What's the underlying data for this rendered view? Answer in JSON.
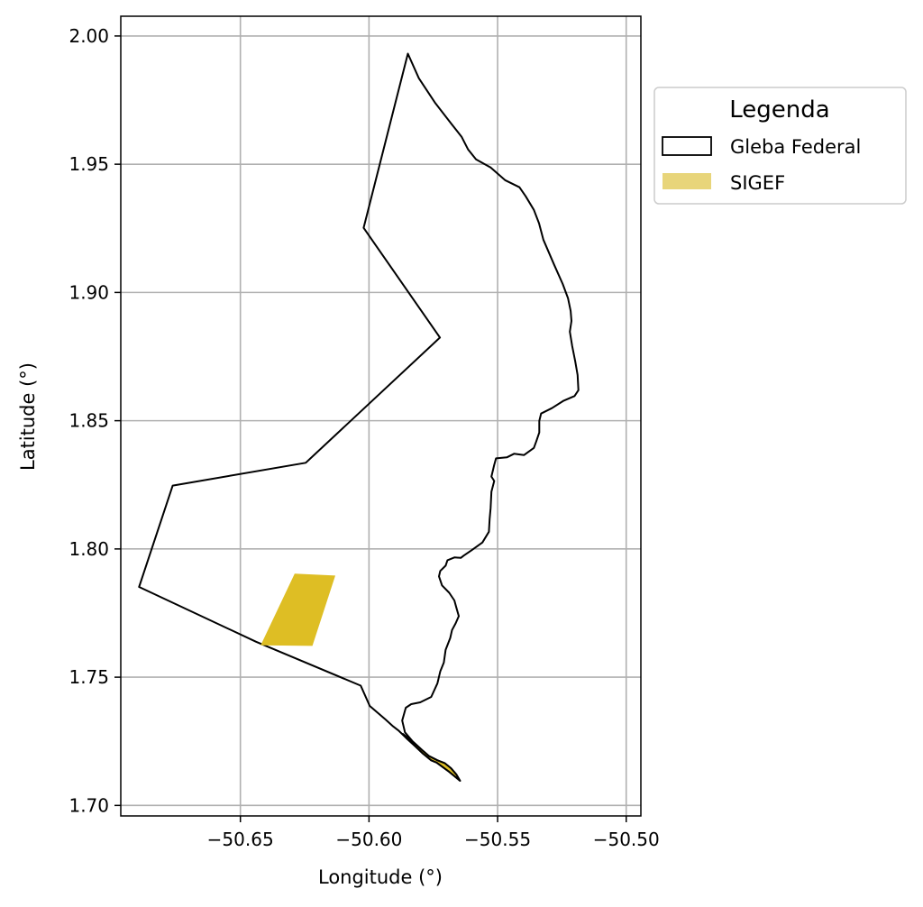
{
  "chart_data": {
    "type": "map",
    "xlabel": "Longitude (°)",
    "ylabel": "Latitude (°)",
    "xlim": [
      -50.6965,
      -50.4943
    ],
    "ylim": [
      1.6959,
      2.0077
    ],
    "xticks": [
      -50.65,
      -50.6,
      -50.55,
      -50.5
    ],
    "xtick_labels": [
      "−50.65",
      "−50.60",
      "−50.55",
      "−50.50"
    ],
    "yticks": [
      1.7,
      1.75,
      1.8,
      1.85,
      1.9,
      1.95,
      2.0
    ],
    "ytick_labels": [
      "1.70",
      "1.75",
      "1.80",
      "1.85",
      "1.90",
      "1.95",
      "2.00"
    ],
    "grid": true,
    "legend": {
      "title": "Legenda",
      "position": "outside upper right",
      "entries": [
        {
          "label": "Gleba Federal",
          "style": "outline",
          "color": "#000000"
        },
        {
          "label": "SIGEF",
          "style": "fill",
          "color": "#E8D57A"
        }
      ]
    },
    "layers": [
      {
        "name": "Gleba Federal",
        "fill": "none",
        "stroke": "#000000",
        "coordinates": [
          [
            -50.5849,
            1.9931
          ],
          [
            -50.5806,
            1.9835
          ],
          [
            -50.5744,
            1.9741
          ],
          [
            -50.5681,
            1.9659
          ],
          [
            -50.564,
            1.9607
          ],
          [
            -50.5615,
            1.9558
          ],
          [
            -50.5584,
            1.9519
          ],
          [
            -50.5527,
            1.9487
          ],
          [
            -50.5471,
            1.9438
          ],
          [
            -50.5415,
            1.941
          ],
          [
            -50.5391,
            1.9375
          ],
          [
            -50.5359,
            1.9322
          ],
          [
            -50.5339,
            1.927
          ],
          [
            -50.5322,
            1.9206
          ],
          [
            -50.528,
            1.9108
          ],
          [
            -50.5247,
            1.9033
          ],
          [
            -50.5226,
            1.8977
          ],
          [
            -50.5216,
            1.8928
          ],
          [
            -50.5213,
            1.8889
          ],
          [
            -50.5219,
            1.8847
          ],
          [
            -50.521,
            1.8791
          ],
          [
            -50.5198,
            1.8731
          ],
          [
            -50.5189,
            1.8678
          ],
          [
            -50.5186,
            1.8619
          ],
          [
            -50.5201,
            1.8596
          ],
          [
            -50.5243,
            1.8578
          ],
          [
            -50.5289,
            1.8549
          ],
          [
            -50.5331,
            1.8528
          ],
          [
            -50.5338,
            1.8499
          ],
          [
            -50.5338,
            1.8454
          ],
          [
            -50.535,
            1.8419
          ],
          [
            -50.5359,
            1.8394
          ],
          [
            -50.5397,
            1.8366
          ],
          [
            -50.5436,
            1.8371
          ],
          [
            -50.5464,
            1.8357
          ],
          [
            -50.5506,
            1.8353
          ],
          [
            -50.5513,
            1.8328
          ],
          [
            -50.5524,
            1.8282
          ],
          [
            -50.5513,
            1.8265
          ],
          [
            -50.5524,
            1.8223
          ],
          [
            -50.5527,
            1.8159
          ],
          [
            -50.5531,
            1.8116
          ],
          [
            -50.5534,
            1.8067
          ],
          [
            -50.5559,
            1.8025
          ],
          [
            -50.5601,
            1.7995
          ],
          [
            -50.5632,
            1.7974
          ],
          [
            -50.5643,
            1.7965
          ],
          [
            -50.5667,
            1.7967
          ],
          [
            -50.5695,
            1.7956
          ],
          [
            -50.5702,
            1.7935
          ],
          [
            -50.5723,
            1.7914
          ],
          [
            -50.5728,
            1.7893
          ],
          [
            -50.5716,
            1.7858
          ],
          [
            -50.5688,
            1.7829
          ],
          [
            -50.5668,
            1.7799
          ],
          [
            -50.566,
            1.777
          ],
          [
            -50.5651,
            1.7738
          ],
          [
            -50.5663,
            1.771
          ],
          [
            -50.5677,
            1.7684
          ],
          [
            -50.5684,
            1.7653
          ],
          [
            -50.5702,
            1.7607
          ],
          [
            -50.5709,
            1.7557
          ],
          [
            -50.5723,
            1.7522
          ],
          [
            -50.5734,
            1.7476
          ],
          [
            -50.5758,
            1.7423
          ],
          [
            -50.5801,
            1.7402
          ],
          [
            -50.5836,
            1.7395
          ],
          [
            -50.5857,
            1.7381
          ],
          [
            -50.5871,
            1.7331
          ],
          [
            -50.586,
            1.7285
          ],
          [
            -50.5829,
            1.7248
          ],
          [
            -50.5794,
            1.7216
          ],
          [
            -50.5766,
            1.7192
          ],
          [
            -50.5734,
            1.7176
          ],
          [
            -50.5706,
            1.7165
          ],
          [
            -50.5681,
            1.7145
          ],
          [
            -50.566,
            1.712
          ],
          [
            -50.5646,
            1.7096
          ],
          [
            -50.5688,
            1.7131
          ],
          [
            -50.5737,
            1.7167
          ],
          [
            -50.5758,
            1.7176
          ],
          [
            -50.579,
            1.7202
          ],
          [
            -50.5822,
            1.7232
          ],
          [
            -50.5853,
            1.7261
          ],
          [
            -50.5884,
            1.7291
          ],
          [
            -50.5906,
            1.7308
          ],
          [
            -50.5937,
            1.7336
          ],
          [
            -50.5997,
            1.7388
          ],
          [
            -50.6032,
            1.7467
          ],
          [
            -50.6439,
            1.7638
          ],
          [
            -50.6894,
            1.7852
          ],
          [
            -50.6763,
            1.8247
          ],
          [
            -50.6246,
            1.8336
          ],
          [
            -50.5724,
            1.8824
          ],
          [
            -50.6021,
            1.9252
          ],
          [
            -50.5849,
            1.9931
          ]
        ]
      },
      {
        "name": "SIGEF",
        "fill": "#DEBE24",
        "stroke": "none",
        "coordinates": [
          [
            -50.6289,
            1.7904
          ],
          [
            -50.6131,
            1.7896
          ],
          [
            -50.622,
            1.7622
          ],
          [
            -50.6421,
            1.7624
          ],
          [
            -50.6289,
            1.7904
          ]
        ]
      },
      {
        "name": "SIGEF",
        "fill": "#DEBE24",
        "stroke": "#000000",
        "coordinates": [
          [
            -50.5868,
            1.7279
          ],
          [
            -50.5829,
            1.7248
          ],
          [
            -50.5794,
            1.7216
          ],
          [
            -50.5766,
            1.7192
          ],
          [
            -50.5734,
            1.7176
          ],
          [
            -50.5706,
            1.7165
          ],
          [
            -50.5681,
            1.7145
          ],
          [
            -50.566,
            1.712
          ],
          [
            -50.5646,
            1.7096
          ],
          [
            -50.5688,
            1.7131
          ],
          [
            -50.5737,
            1.7167
          ],
          [
            -50.5758,
            1.7176
          ],
          [
            -50.579,
            1.7202
          ],
          [
            -50.5822,
            1.7232
          ],
          [
            -50.5853,
            1.7261
          ],
          [
            -50.5868,
            1.7279
          ]
        ]
      }
    ]
  }
}
